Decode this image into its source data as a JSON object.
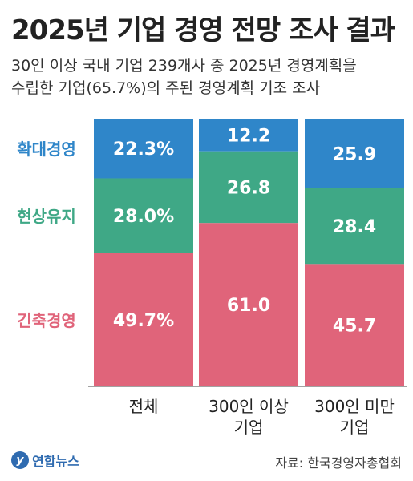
{
  "header": {
    "title": "2025년 기업 경영 전망 조사 결과",
    "subtitle_line1": "30인 이상 국내 기업 239개사 중 2025년 경영계획을",
    "subtitle_line2": "수립한 기업(65.7%)의 주된 경영계획 기조 조사"
  },
  "footer": {
    "logo_text": "연합뉴스",
    "source": "자료: 한국경영자총협회"
  },
  "chart_data": {
    "type": "bar",
    "stacked": true,
    "normalized": true,
    "categories": [
      [
        "전체"
      ],
      [
        "300인 이상",
        "기업"
      ],
      [
        "300인 미만",
        "기업"
      ]
    ],
    "series": [
      {
        "name": "확대경영",
        "values": [
          22.3,
          12.2,
          25.9
        ],
        "labels": [
          "22.3%",
          "12.2",
          "25.9"
        ],
        "color": "#2f86c9"
      },
      {
        "name": "현상유지",
        "values": [
          28.0,
          26.8,
          28.4
        ],
        "labels": [
          "28.0%",
          "26.8",
          "28.4"
        ],
        "color": "#3fa886"
      },
      {
        "name": "긴축경영",
        "values": [
          49.7,
          61.0,
          45.7
        ],
        "labels": [
          "49.7%",
          "61.0",
          "45.7"
        ],
        "color": "#e0647a"
      }
    ],
    "legend_placement": "left",
    "ylim": [
      0,
      100
    ]
  }
}
